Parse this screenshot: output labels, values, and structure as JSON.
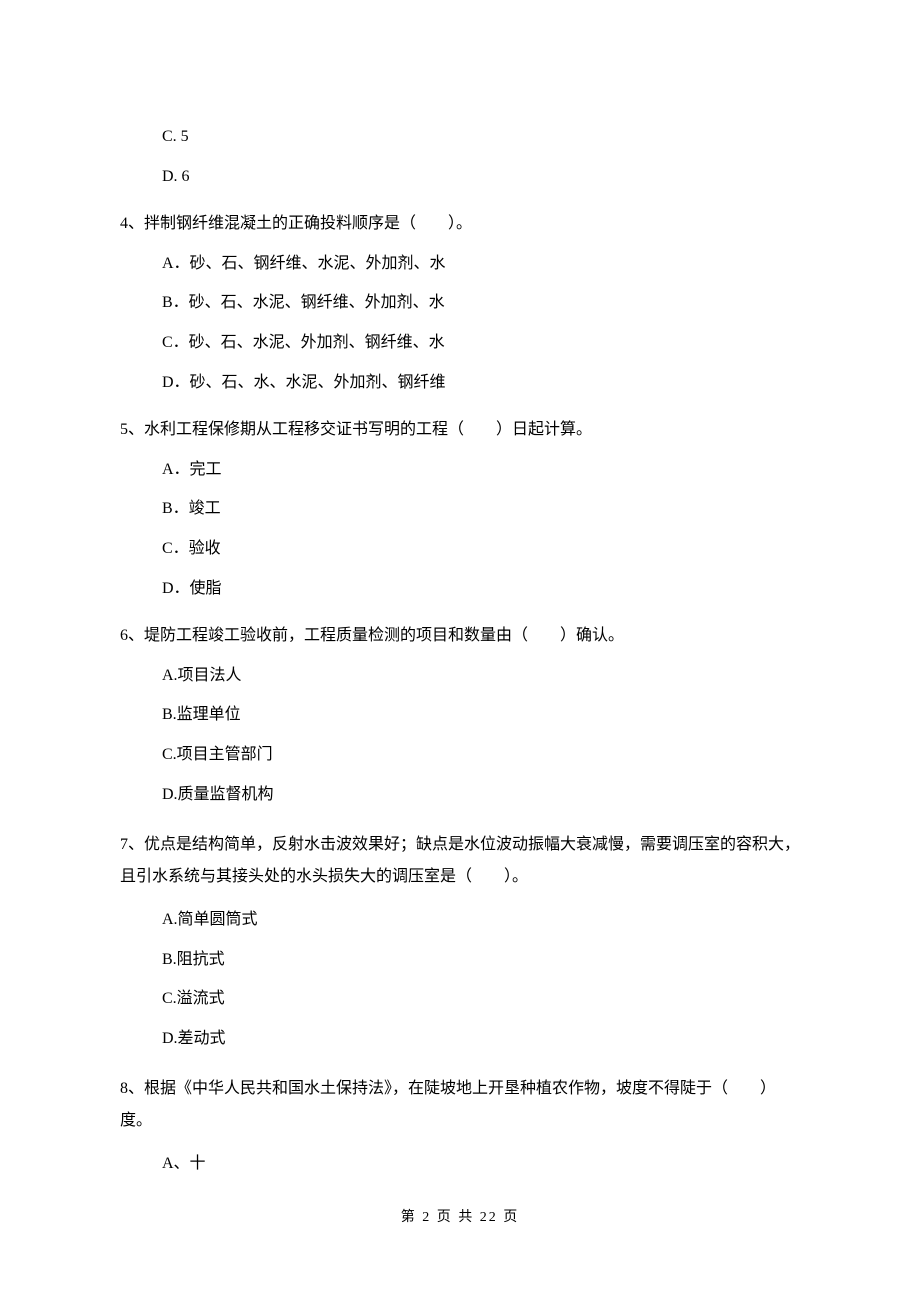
{
  "q3": {
    "optC": "C. 5",
    "optD": "D. 6"
  },
  "q4": {
    "text": "4、拌制钢纤维混凝土的正确投料顺序是（　　）。",
    "optA": "A．砂、石、钢纤维、水泥、外加剂、水",
    "optB": "B．砂、石、水泥、钢纤维、外加剂、水",
    "optC": "C．砂、石、水泥、外加剂、钢纤维、水",
    "optD": "D．砂、石、水、水泥、外加剂、钢纤维"
  },
  "q5": {
    "text": "5、水利工程保修期从工程移交证书写明的工程（　　）日起计算。",
    "optA": "A．完工",
    "optB": "B．竣工",
    "optC": "C．验收",
    "optD": "D．使脂"
  },
  "q6": {
    "text": "6、堤防工程竣工验收前，工程质量检测的项目和数量由（　　）确认。",
    "optA": "A.项目法人",
    "optB": "B.监理单位",
    "optC": "C.项目主管部门",
    "optD": "D.质量监督机构"
  },
  "q7": {
    "text": "7、优点是结构简单，反射水击波效果好；缺点是水位波动振幅大衰减慢，需要调压室的容积大，且引水系统与其接头处的水头损失大的调压室是（　　）。",
    "optA": "A.简单圆筒式",
    "optB": "B.阻抗式",
    "optC": "C.溢流式",
    "optD": "D.差动式"
  },
  "q8": {
    "text": "8、根据《中华人民共和国水土保持法》，在陡坡地上开垦种植农作物，坡度不得陡于（　　）度。",
    "optA": "A、十"
  },
  "footer": "第 2 页 共 22 页"
}
